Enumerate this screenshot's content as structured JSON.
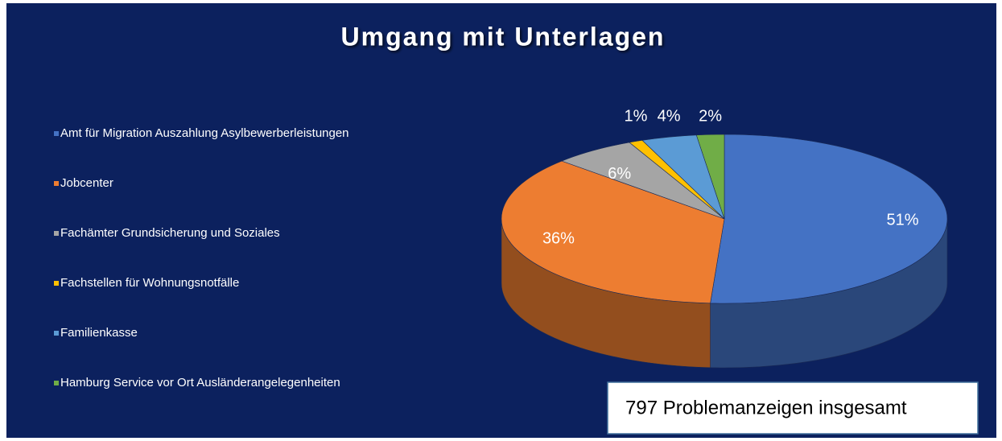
{
  "chart_data": {
    "type": "pie",
    "title": "Umgang mit Unterlagen",
    "categories": [
      "Amt für Migration Auszahlung Asylbewerberleistungen",
      "Jobcenter",
      "Fachämter Grundsicherung und Soziales",
      "Fachstellen für Wohnungsnotfälle",
      "Familienkasse",
      "Hamburg Service vor Ort Ausländerangelegenheiten"
    ],
    "values": [
      51,
      36,
      6,
      1,
      4,
      2
    ],
    "value_labels": [
      "51%",
      "36%",
      "6%",
      "1%",
      "4%",
      "2%"
    ],
    "colors": [
      "#4472c4",
      "#ed7d31",
      "#a5a5a5",
      "#ffc000",
      "#5b9bd5",
      "#70ad47"
    ],
    "legend": "left",
    "annotation": "797 Problemanzeigen insgesamt"
  }
}
